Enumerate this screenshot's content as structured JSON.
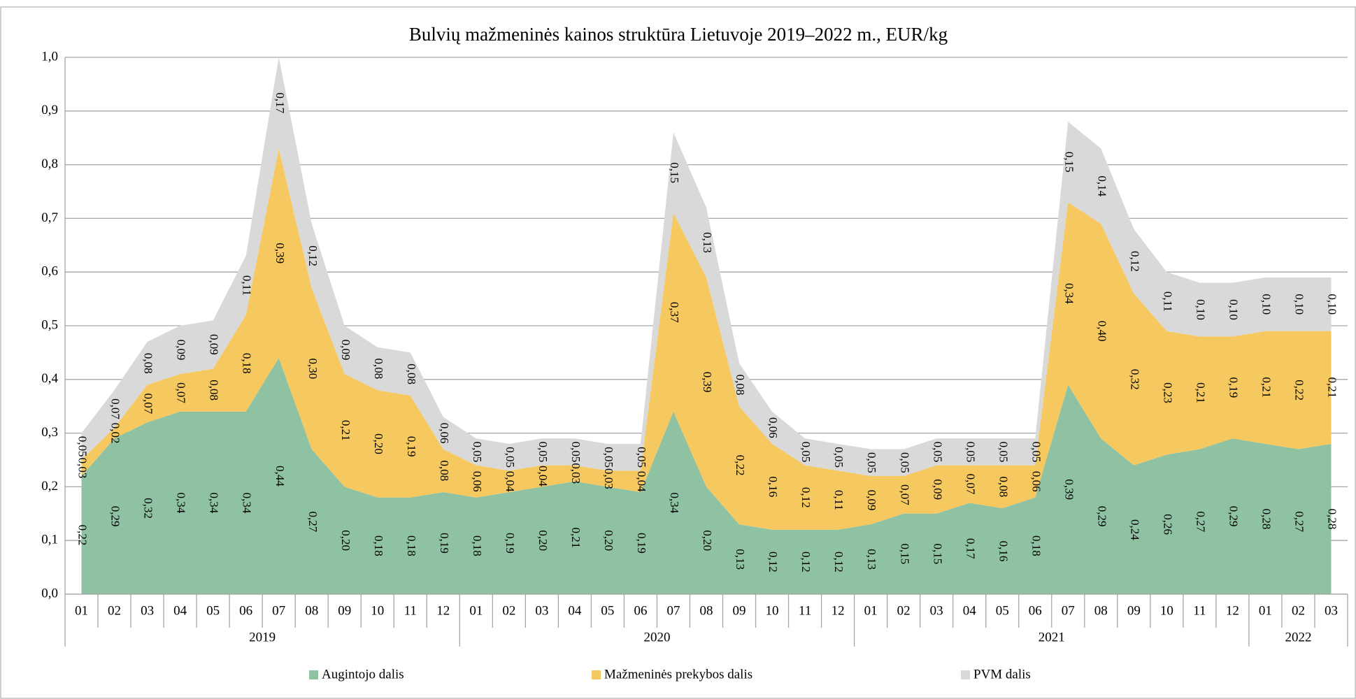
{
  "chart_data": {
    "type": "stacked_area",
    "title": "Bulvių mažmeninės kainos struktūra Lietuvoje 2019–2022 m., EUR/kg",
    "groups": [
      {
        "label": "2019",
        "categories": [
          "01",
          "02",
          "03",
          "04",
          "05",
          "06",
          "07",
          "08",
          "09",
          "10",
          "11",
          "12"
        ]
      },
      {
        "label": "2020",
        "categories": [
          "01",
          "02",
          "03",
          "04",
          "05",
          "06",
          "07",
          "08",
          "09",
          "10",
          "11",
          "12"
        ]
      },
      {
        "label": "2021",
        "categories": [
          "01",
          "02",
          "03",
          "04",
          "05",
          "06",
          "07",
          "08",
          "09",
          "10",
          "11",
          "12"
        ]
      },
      {
        "label": "2022",
        "categories": [
          "01",
          "02",
          "03"
        ]
      }
    ],
    "series": [
      {
        "name": "Augintojo dalis",
        "color": "#8fc1a3",
        "values": [
          0.22,
          0.29,
          0.32,
          0.34,
          0.34,
          0.34,
          0.44,
          0.27,
          0.2,
          0.18,
          0.18,
          0.19,
          0.18,
          0.19,
          0.2,
          0.21,
          0.2,
          0.19,
          0.34,
          0.2,
          0.13,
          0.12,
          0.12,
          0.12,
          0.13,
          0.15,
          0.15,
          0.17,
          0.16,
          0.18,
          0.39,
          0.29,
          0.24,
          0.26,
          0.27,
          0.29,
          0.28,
          0.27,
          0.28
        ],
        "value_labels": [
          "0,22",
          "0,29",
          "0,32",
          "0,34",
          "0,34",
          "0,34",
          "0,44",
          "0,27",
          "0,20",
          "0,18",
          "0,18",
          "0,19",
          "0,18",
          "0,19",
          "0,20",
          "0,21",
          "0,20",
          "0,19",
          "0,34",
          "0,20",
          "0,13",
          "0,12",
          "0,12",
          "0,12",
          "0,13",
          "0,15",
          "0,15",
          "0,17",
          "0,16",
          "0,18",
          "0,39",
          "0,29",
          "0,24",
          "0,26",
          "0,27",
          "0,29",
          "0,28",
          "0,27",
          "0,28"
        ]
      },
      {
        "name": "Mažmeninės prekybos dalis",
        "color": "#f5c960",
        "values": [
          0.03,
          0.02,
          0.07,
          0.07,
          0.08,
          0.18,
          0.39,
          0.3,
          0.21,
          0.2,
          0.19,
          0.08,
          0.06,
          0.04,
          0.04,
          0.03,
          0.03,
          0.04,
          0.37,
          0.39,
          0.22,
          0.16,
          0.12,
          0.11,
          0.09,
          0.07,
          0.09,
          0.07,
          0.08,
          0.06,
          0.34,
          0.4,
          0.32,
          0.23,
          0.21,
          0.19,
          0.21,
          0.22,
          0.21
        ],
        "value_labels": [
          "0,03",
          "0,02",
          "0,07",
          "0,07",
          "0,08",
          "0,18",
          "0,39",
          "0,30",
          "0,21",
          "0,20",
          "0,19",
          "0,08",
          "0,06",
          "0,04",
          "0,04",
          "0,03",
          "0,03",
          "0,04",
          "0,37",
          "0,39",
          "0,22",
          "0,16",
          "0,12",
          "0,11",
          "0,09",
          "0,07",
          "0,09",
          "0,07",
          "0,08",
          "0,06",
          "0,34",
          "0,40",
          "0,32",
          "0,23",
          "0,21",
          "0,19",
          "0,21",
          "0,22",
          "0,21"
        ]
      },
      {
        "name": "PVM dalis",
        "color": "#d9d9d9",
        "values": [
          0.05,
          0.07,
          0.08,
          0.09,
          0.09,
          0.11,
          0.17,
          0.12,
          0.09,
          0.08,
          0.08,
          0.06,
          0.05,
          0.05,
          0.05,
          0.05,
          0.05,
          0.05,
          0.15,
          0.13,
          0.08,
          0.06,
          0.05,
          0.05,
          0.05,
          0.05,
          0.05,
          0.05,
          0.05,
          0.05,
          0.15,
          0.14,
          0.12,
          0.11,
          0.1,
          0.1,
          0.1,
          0.1,
          0.1
        ],
        "value_labels": [
          "0,05",
          "0,07",
          "0,08",
          "0,09",
          "0,09",
          "0,11",
          "0,17",
          "0,12",
          "0,09",
          "0,08",
          "0,08",
          "0,06",
          "0,05",
          "0,05",
          "0,05",
          "0,05",
          "0,05",
          "0,05",
          "0,15",
          "0,13",
          "0,08",
          "0,06",
          "0,05",
          "0,05",
          "0,05",
          "0,05",
          "0,05",
          "0,05",
          "0,05",
          "0,05",
          "0,15",
          "0,14",
          "0,12",
          "0,11",
          "0,10",
          "0,10",
          "0,10",
          "0,10",
          "0,10"
        ]
      }
    ],
    "ylim": [
      0,
      1
    ],
    "yticks": [
      {
        "value": 0,
        "label": "0,0"
      },
      {
        "value": 0.1,
        "label": "0,1"
      },
      {
        "value": 0.2,
        "label": "0,2"
      },
      {
        "value": 0.3,
        "label": "0,3"
      },
      {
        "value": 0.4,
        "label": "0,4"
      },
      {
        "value": 0.5,
        "label": "0,5"
      },
      {
        "value": 0.6,
        "label": "0,6"
      },
      {
        "value": 0.7,
        "label": "0,7"
      },
      {
        "value": 0.8,
        "label": "0,8"
      },
      {
        "value": 0.9,
        "label": "0,9"
      },
      {
        "value": 1,
        "label": "1,0"
      }
    ],
    "grid": true,
    "legend": "bottom"
  }
}
